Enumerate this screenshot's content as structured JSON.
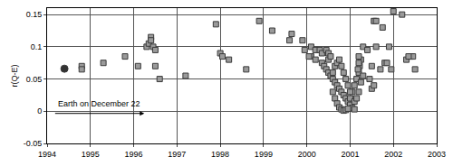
{
  "chart_data": {
    "type": "scatter",
    "y_label": "r(Q-E)",
    "xlim": [
      1994,
      2003
    ],
    "xticks": [
      1994,
      1995,
      1996,
      1997,
      1998,
      1999,
      2000,
      2001,
      2002,
      2003
    ],
    "ylim": [
      -0.05,
      0.16
    ],
    "yticks": [
      -0.05,
      0,
      0.05,
      0.1,
      0.15
    ],
    "grid": true,
    "legend": false,
    "annotations": [
      {
        "text": "Earth on December 22",
        "x": 1995.2,
        "y": 0.012
      }
    ],
    "series": [
      {
        "color": "#9a9a9a",
        "marker": "square",
        "x": [
          1994.8,
          1994.8,
          1995.3,
          1995.8,
          1996.1,
          1996.3,
          1996.35,
          1996.4,
          1996.45,
          1996.5,
          1996.4,
          1996.6,
          1996.5,
          1997.2,
          1997.9,
          1998.0,
          1998.05,
          1998.2,
          1998.6,
          1998.9,
          1999.2,
          1999.6,
          1999.65,
          1999.9,
          2000.1,
          2000.2,
          2000.3,
          2000.35,
          2000.45,
          2000.5,
          2000.1,
          2000.2,
          1999.95,
          2000.05,
          2000.35,
          2000.4,
          2000.45,
          2000.5,
          2000.55,
          2000.6,
          2000.65,
          2000.7,
          2000.75,
          2000.8,
          2000.85,
          2000.9,
          2000.95,
          2001.0,
          2001.05,
          2001.1,
          2000.6,
          2000.65,
          2000.7,
          2000.75,
          2000.8,
          2000.85,
          2000.9,
          2000.95,
          2001.0,
          2001.05,
          2001.1,
          2001.15,
          2001.2,
          2001.22,
          2001.25,
          2001.2,
          2001.18,
          2000.6,
          2000.65,
          2000.7,
          2000.75,
          2000.8,
          2000.85,
          2000.9,
          2000.95,
          2001.0,
          2001.1,
          2001.15,
          2001.2,
          2001.25,
          2001.3,
          2000.5,
          2000.55,
          2001.45,
          2001.5,
          2001.55,
          2001.2,
          2001.3,
          2001.4,
          2001.5,
          2001.6,
          2001.7,
          2001.8,
          2001.9,
          2001.95,
          2001.55,
          2001.75,
          2002.0,
          2002.2,
          2001.6,
          2001.85,
          2002.3,
          2002.4,
          2002.45,
          2002.5,
          2002.35
        ],
        "values": [
          0.07,
          0.065,
          0.075,
          0.085,
          0.07,
          0.1,
          0.105,
          0.115,
          0.1,
          0.095,
          0.11,
          0.05,
          0.07,
          0.055,
          0.135,
          0.09,
          0.085,
          0.08,
          0.065,
          0.14,
          0.125,
          0.11,
          0.12,
          0.11,
          0.1,
          0.095,
          0.095,
          0.09,
          0.095,
          0.09,
          0.085,
          0.08,
          0.095,
          0.085,
          0.075,
          0.07,
          0.065,
          0.06,
          0.055,
          0.05,
          0.045,
          0.04,
          0.035,
          0.03,
          0.025,
          0.02,
          0.015,
          0.01,
          0.005,
          0.003,
          0.03,
          0.02,
          0.012,
          0.006,
          0.003,
          0.001,
          0.002,
          0.004,
          0.02,
          0.03,
          0.04,
          0.05,
          0.06,
          0.07,
          0.08,
          0.075,
          0.065,
          0.06,
          0.07,
          0.075,
          0.08,
          0.07,
          0.06,
          0.05,
          0.04,
          0.03,
          0.015,
          0.02,
          0.03,
          0.045,
          0.055,
          0.08,
          0.085,
          0.05,
          0.035,
          0.04,
          0.085,
          0.1,
          0.095,
          0.07,
          0.1,
          0.065,
          0.075,
          0.1,
          0.065,
          0.14,
          0.13,
          0.155,
          0.15,
          0.14,
          0.075,
          0.08,
          0.085,
          0.085,
          0.065,
          0.085
        ]
      },
      {
        "color": "#333333",
        "marker": "circle",
        "x": [
          1994.4
        ],
        "values": [
          0.066
        ]
      }
    ]
  }
}
